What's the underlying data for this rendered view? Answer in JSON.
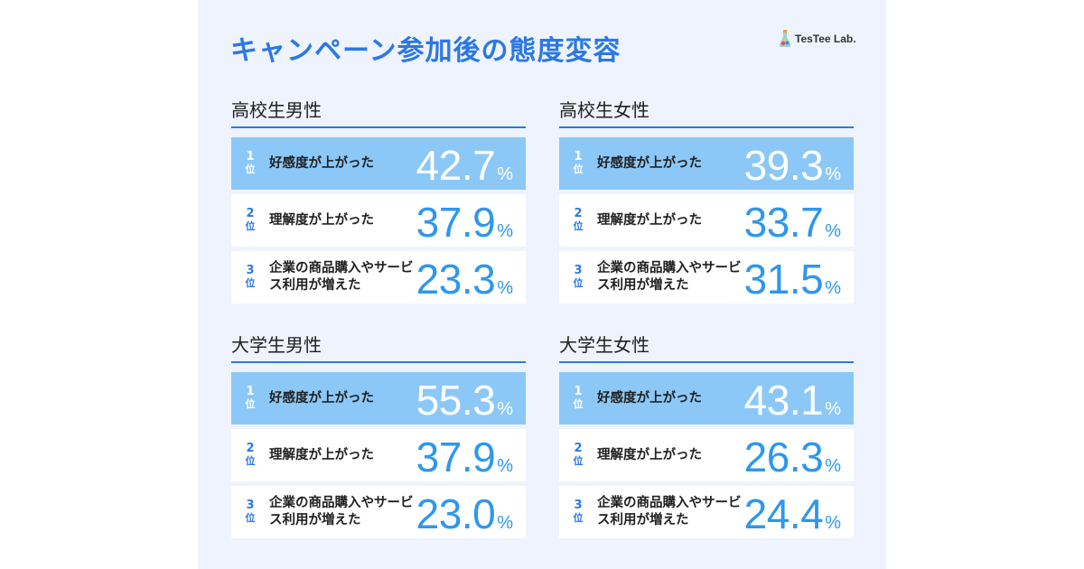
{
  "title": "キャンペーン参加後の態度変容",
  "logo": {
    "text": "TesTee Lab.",
    "icon": "flask-icon"
  },
  "colors": {
    "accent": "#2b78e4",
    "highlight": "#8cc8f7",
    "value": "#2f97ec",
    "background": "#eef3fd"
  },
  "rank_suffix": "位",
  "percent_sign": "%",
  "sections": [
    {
      "title": "高校生男性",
      "rows": [
        {
          "rank": "1",
          "label": "好感度が上がった",
          "value": "42.7"
        },
        {
          "rank": "2",
          "label": "理解度が上がった",
          "value": "37.9"
        },
        {
          "rank": "3",
          "label": "企業の商品購入やサービス利用が増えた",
          "value": "23.3"
        }
      ]
    },
    {
      "title": "高校生女性",
      "rows": [
        {
          "rank": "1",
          "label": "好感度が上がった",
          "value": "39.3"
        },
        {
          "rank": "2",
          "label": "理解度が上がった",
          "value": "33.7"
        },
        {
          "rank": "3",
          "label": "企業の商品購入やサービス利用が増えた",
          "value": "31.5"
        }
      ]
    },
    {
      "title": "大学生男性",
      "rows": [
        {
          "rank": "1",
          "label": "好感度が上がった",
          "value": "55.3"
        },
        {
          "rank": "2",
          "label": "理解度が上がった",
          "value": "37.9"
        },
        {
          "rank": "3",
          "label": "企業の商品購入やサービス利用が増えた",
          "value": "23.0"
        }
      ]
    },
    {
      "title": "大学生女性",
      "rows": [
        {
          "rank": "1",
          "label": "好感度が上がった",
          "value": "43.1"
        },
        {
          "rank": "2",
          "label": "理解度が上がった",
          "value": "26.3"
        },
        {
          "rank": "3",
          "label": "企業の商品購入やサービス利用が増えた",
          "value": "24.4"
        }
      ]
    }
  ]
}
